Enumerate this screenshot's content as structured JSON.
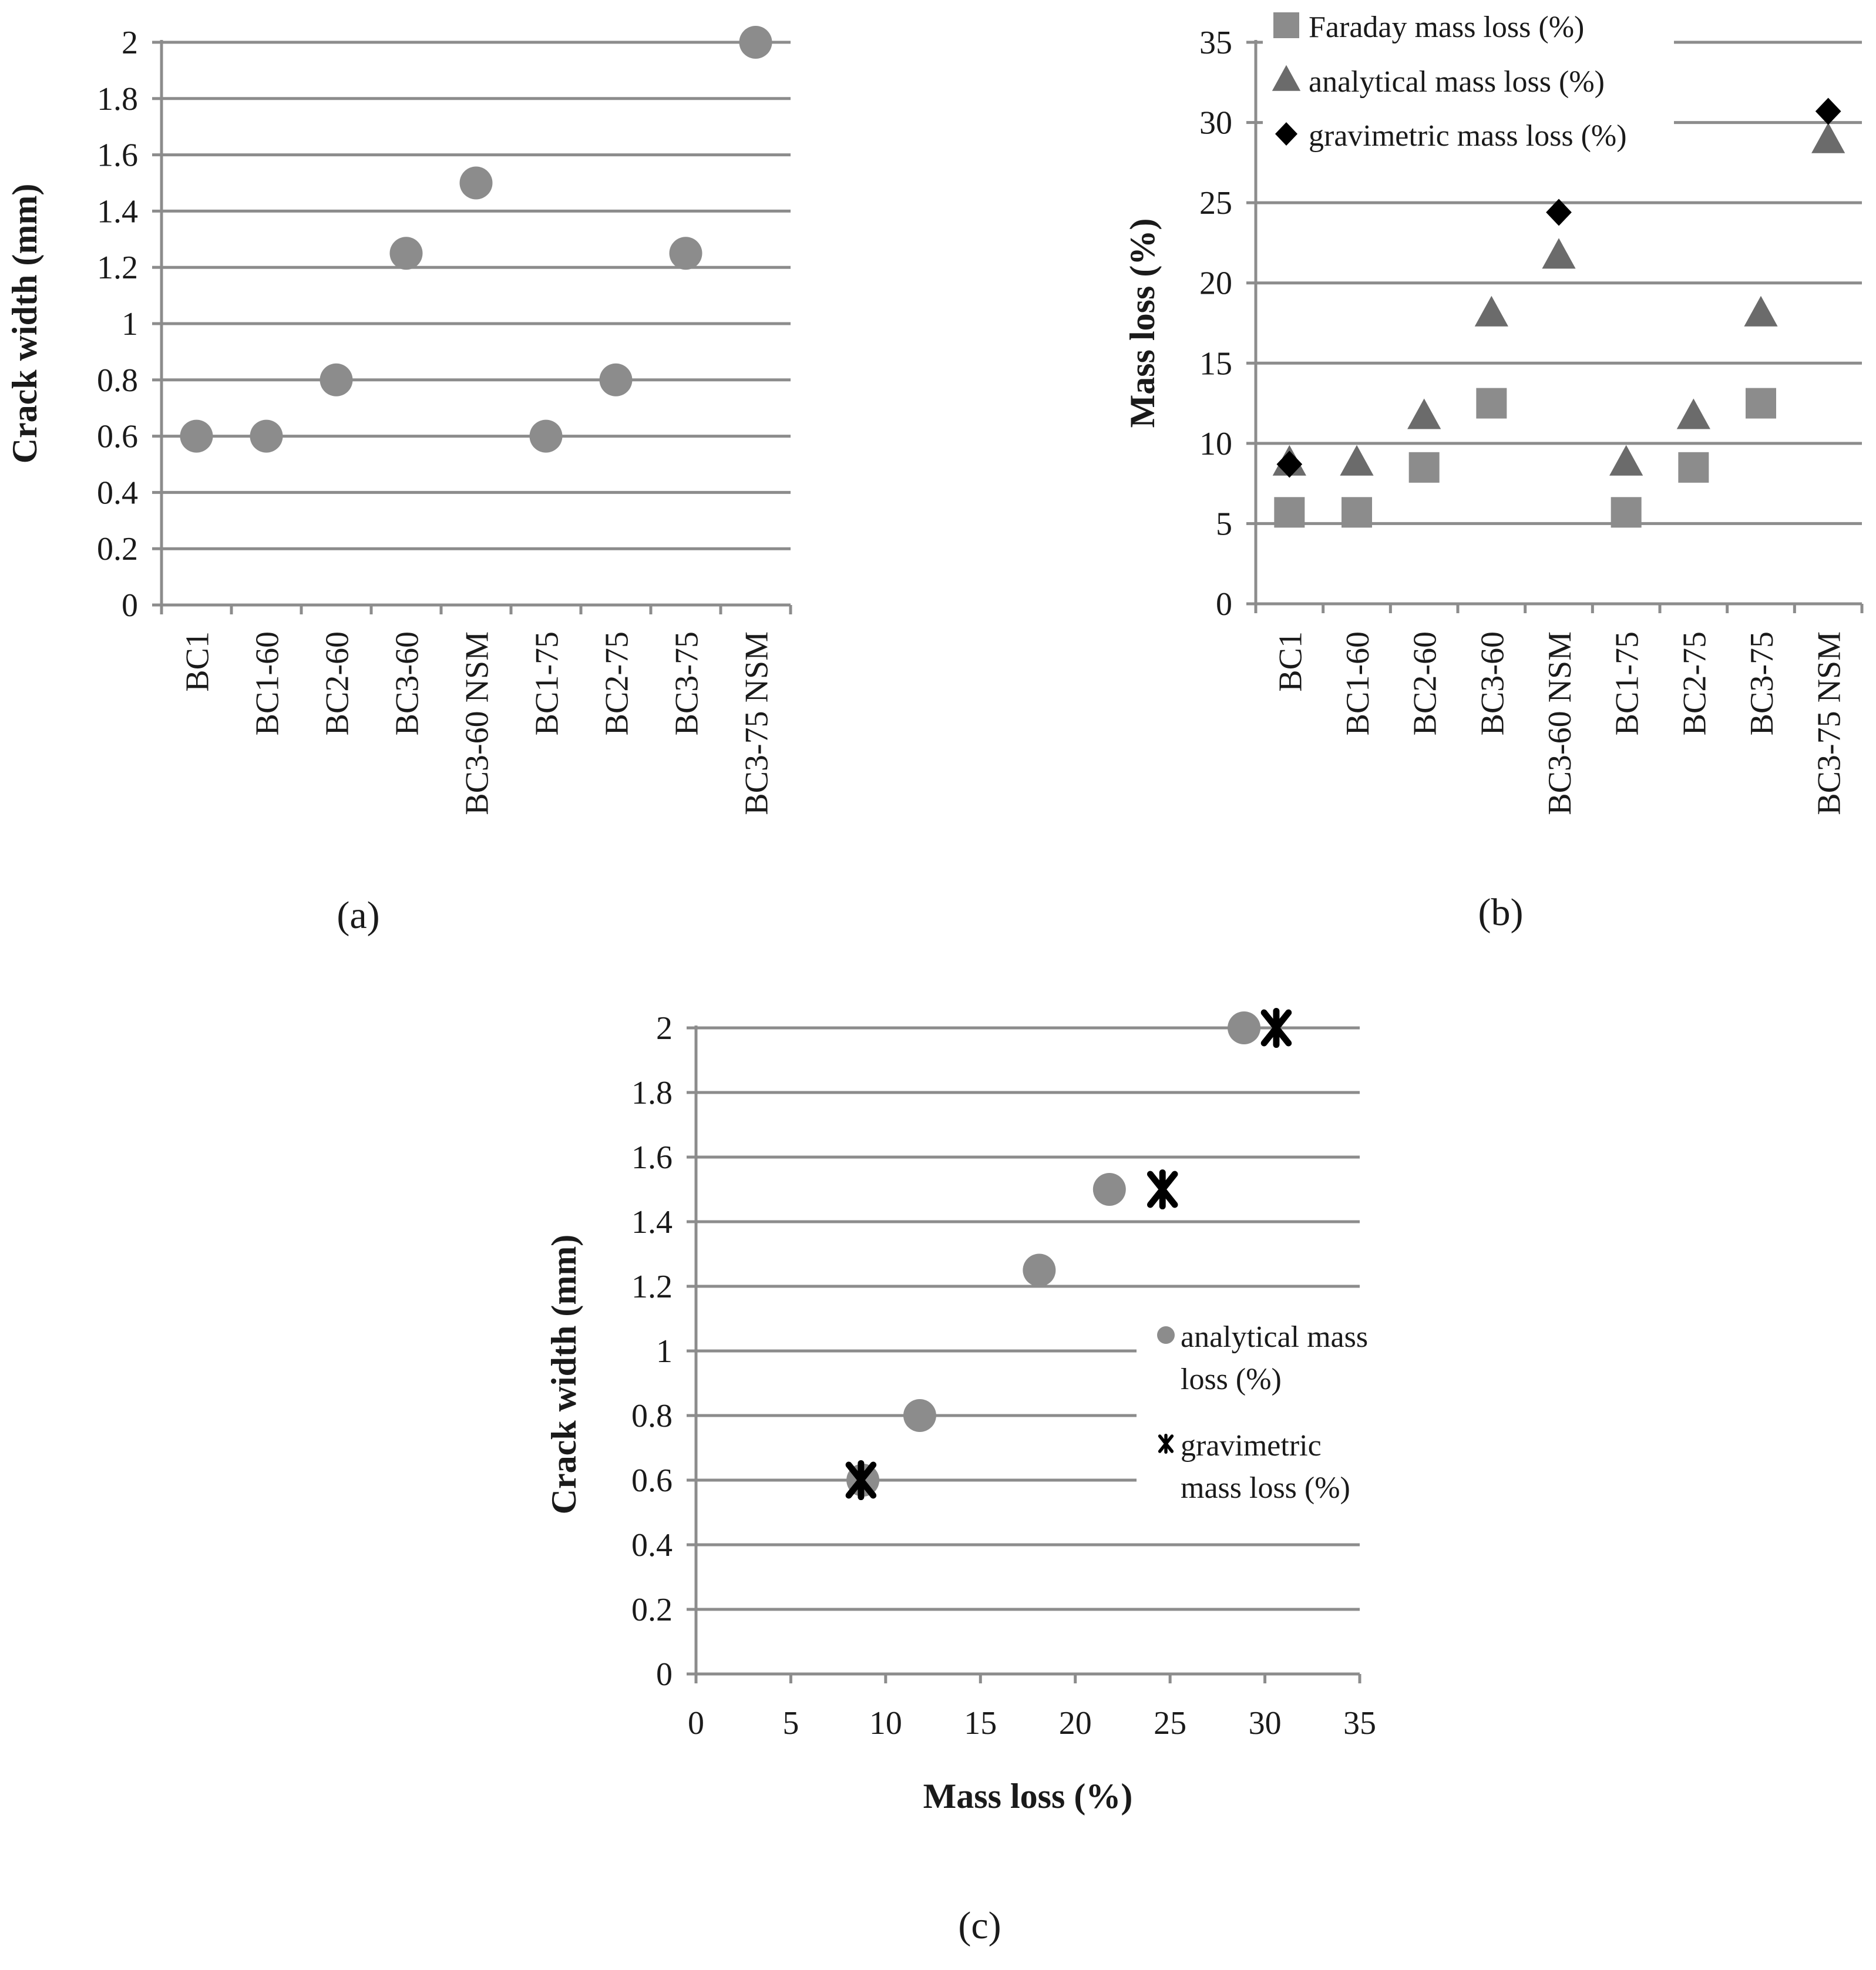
{
  "chart_data": [
    {
      "id": "a",
      "type": "scatter",
      "caption": "(a)",
      "caption_letter": "a",
      "title": "",
      "xlabel": "",
      "ylabel": "Crack width (mm)",
      "ylim": [
        0,
        2
      ],
      "yticks": [
        0,
        0.2,
        0.4,
        0.6,
        0.8,
        1,
        1.2,
        1.4,
        1.6,
        1.8,
        2
      ],
      "ytick_labels": [
        "0",
        "0.2",
        "0.4",
        "0.6",
        "0.8",
        "1",
        "1.2",
        "1.4",
        "1.6",
        "1.8",
        "2"
      ],
      "grid": true,
      "categories": [
        "BC1",
        "BC1-60",
        "BC2-60",
        "BC3-60",
        "BC3-60 NSM",
        "BC1-75",
        "BC2-75",
        "BC3-75",
        "BC3-75 NSM"
      ],
      "series": [
        {
          "name": "Crack width",
          "marker": "circle",
          "color": "#8c8c8c",
          "values": [
            0.6,
            0.6,
            0.8,
            1.25,
            1.5,
            0.6,
            0.8,
            1.25,
            2.0
          ]
        }
      ]
    },
    {
      "id": "b",
      "type": "scatter",
      "caption": "(b)",
      "caption_letter": "b",
      "title": "",
      "xlabel": "",
      "ylabel": "Mass loss (%)",
      "ylim": [
        0,
        35
      ],
      "yticks": [
        0,
        5,
        10,
        15,
        20,
        25,
        30,
        35
      ],
      "ytick_labels": [
        "0",
        "5",
        "10",
        "15",
        "20",
        "25",
        "30",
        "35"
      ],
      "grid": true,
      "legend_position": "top",
      "categories": [
        "BC1",
        "BC1-60",
        "BC2-60",
        "BC3-60",
        "BC3-60 NSM",
        "BC1-75",
        "BC2-75",
        "BC3-75",
        "BC3-75 NSM"
      ],
      "series": [
        {
          "name": "Faraday mass loss (%)",
          "marker": "square",
          "color": "#8c8c8c",
          "values": [
            5.7,
            5.7,
            8.5,
            12.5,
            null,
            5.7,
            8.5,
            12.5,
            null
          ]
        },
        {
          "name": "analytical mass loss (%)",
          "marker": "triangle",
          "color": "#6b6b6b",
          "values": [
            8.8,
            8.8,
            11.7,
            18.1,
            21.7,
            8.8,
            11.7,
            18.1,
            28.9
          ]
        },
        {
          "name": "gravimetric mass loss (%)",
          "marker": "diamond",
          "color": "#000000",
          "values": [
            8.7,
            null,
            null,
            null,
            24.4,
            null,
            null,
            null,
            30.7
          ]
        }
      ]
    },
    {
      "id": "c",
      "type": "scatter",
      "caption": "(c)",
      "caption_letter": "c",
      "title": "",
      "xlabel": "Mass loss (%)",
      "ylabel": "Crack width (mm)",
      "xlim": [
        0,
        35
      ],
      "xticks": [
        0,
        5,
        10,
        15,
        20,
        25,
        30,
        35
      ],
      "xtick_labels": [
        "0",
        "5",
        "10",
        "15",
        "20",
        "25",
        "30",
        "35"
      ],
      "ylim": [
        0,
        2
      ],
      "yticks": [
        0,
        0.2,
        0.4,
        0.6,
        0.8,
        1,
        1.2,
        1.4,
        1.6,
        1.8,
        2
      ],
      "ytick_labels": [
        "0",
        "0.2",
        "0.4",
        "0.6",
        "0.8",
        "1",
        "1.2",
        "1.4",
        "1.6",
        "1.8",
        "2"
      ],
      "grid": true,
      "legend_position": "right",
      "series": [
        {
          "name": "analytical mass loss (%)",
          "legend_lines": [
            "analytical mass",
            "loss (%)"
          ],
          "marker": "circle",
          "color": "#8c8c8c",
          "points": [
            [
              8.8,
              0.6
            ],
            [
              11.8,
              0.8
            ],
            [
              18.1,
              1.25
            ],
            [
              21.8,
              1.5
            ],
            [
              28.9,
              2.0
            ]
          ]
        },
        {
          "name": "gravimetric mass loss (%)",
          "legend_lines": [
            "gravimetric",
            "mass loss (%)"
          ],
          "marker": "asterisk",
          "color": "#000000",
          "points": [
            [
              8.7,
              0.6
            ],
            [
              24.6,
              1.5
            ],
            [
              30.6,
              2.0
            ]
          ]
        }
      ]
    }
  ]
}
